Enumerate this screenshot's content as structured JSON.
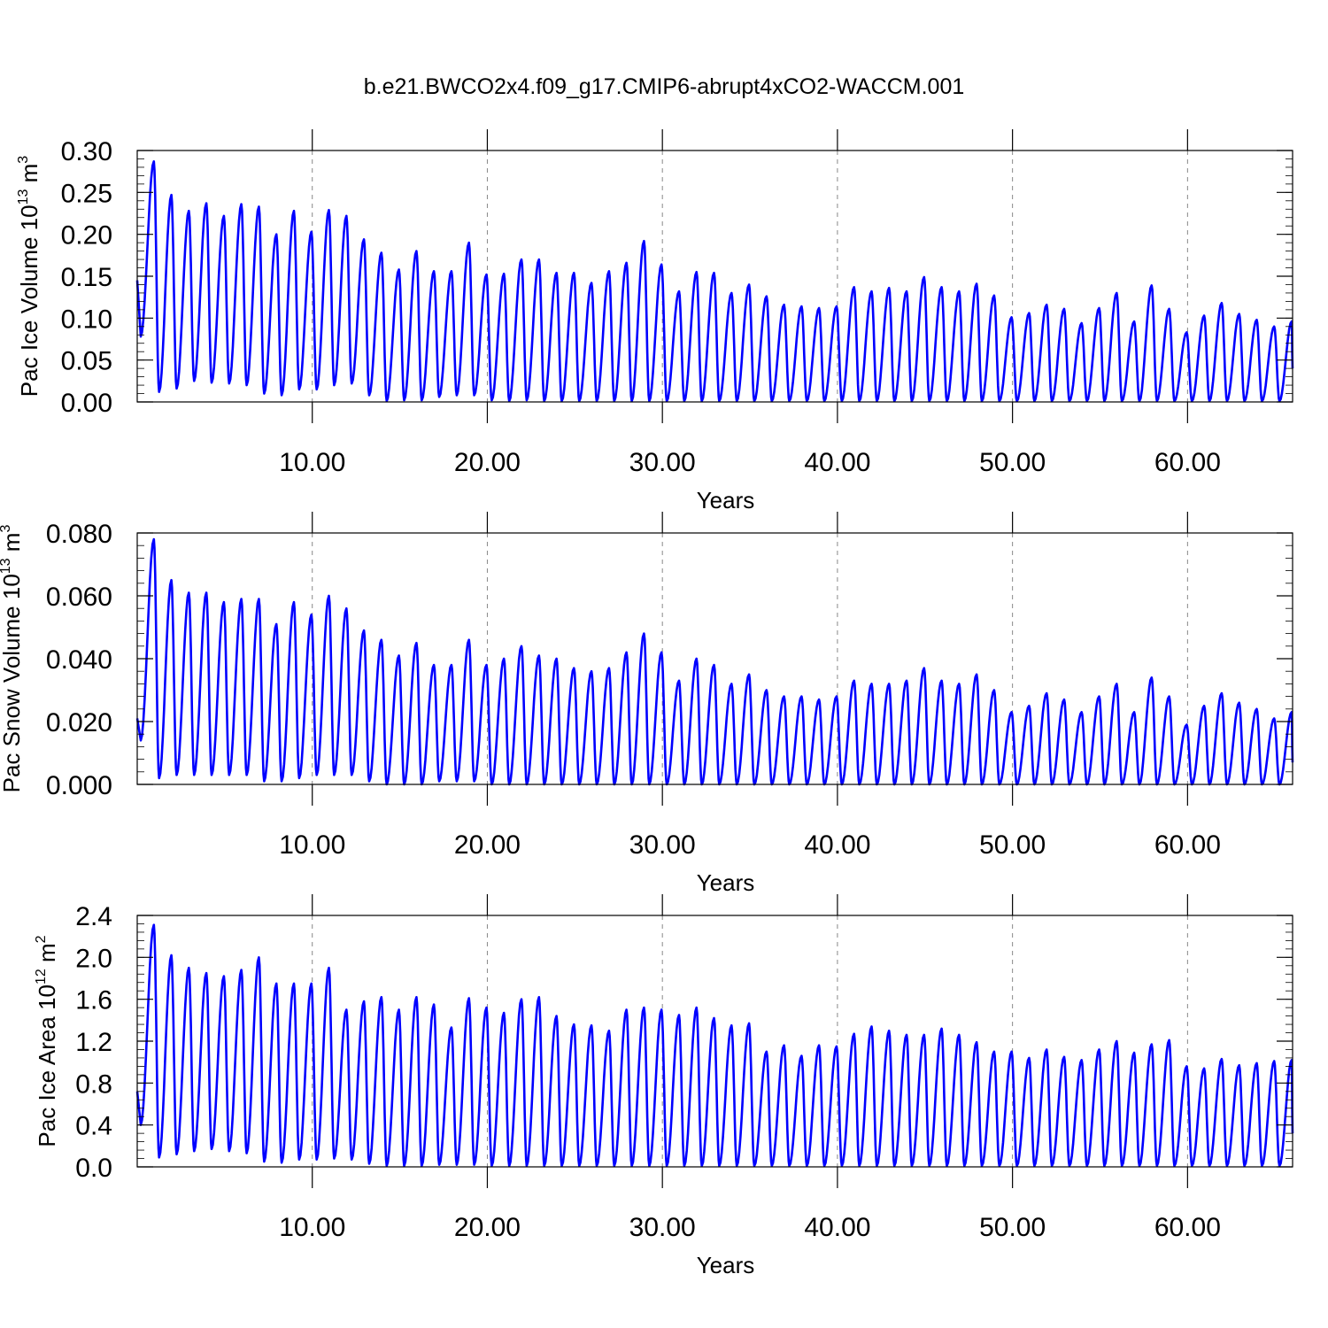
{
  "title": "b.e21.BWCO2x4.f09_g17.CMIP6-abrupt4xCO2-WACCM.001",
  "colors": {
    "line": "#0000ff",
    "axis": "#000000",
    "grid": "#888888"
  },
  "chart_data": [
    {
      "type": "line",
      "name": "ice-volume",
      "ylabel": "Pac Ice Volume",
      "yunit_base": "10",
      "yunit_exp": "13",
      "yunit_tail": "m",
      "yunit_tail_exp": "3",
      "xlabel": "Years",
      "xlim": [
        0,
        66
      ],
      "ylim": [
        0,
        0.3
      ],
      "xticks": [
        10,
        20,
        30,
        40,
        50,
        60
      ],
      "xtick_labels": [
        "10.00",
        "20.00",
        "30.00",
        "40.00",
        "50.00",
        "60.00"
      ],
      "yticks": [
        0,
        0.05,
        0.1,
        0.15,
        0.2,
        0.25,
        0.3
      ],
      "ytick_labels": [
        "0.00",
        "0.05",
        "0.10",
        "0.15",
        "0.20",
        "0.25",
        "0.30"
      ],
      "grid": "vertical dashed at x ticks",
      "start_value": 0.145,
      "end_value": 0.04,
      "annual_maxima": [
        0.287,
        0.247,
        0.228,
        0.237,
        0.222,
        0.236,
        0.233,
        0.2,
        0.228,
        0.203,
        0.229,
        0.222,
        0.194,
        0.178,
        0.158,
        0.18,
        0.156,
        0.156,
        0.19,
        0.152,
        0.153,
        0.17,
        0.17,
        0.154,
        0.154,
        0.142,
        0.156,
        0.166,
        0.192,
        0.164,
        0.132,
        0.155,
        0.154,
        0.13,
        0.14,
        0.126,
        0.116,
        0.114,
        0.112,
        0.114,
        0.137,
        0.132,
        0.136,
        0.132,
        0.149,
        0.137,
        0.132,
        0.141,
        0.127,
        0.101,
        0.106,
        0.116,
        0.111,
        0.094,
        0.112,
        0.13,
        0.096,
        0.139,
        0.111,
        0.083,
        0.103,
        0.118,
        0.105,
        0.098,
        0.09,
        0.096
      ],
      "annual_minima": [
        0.078,
        0.012,
        0.016,
        0.025,
        0.023,
        0.022,
        0.02,
        0.01,
        0.008,
        0.015,
        0.015,
        0.02,
        0.022,
        0.008,
        0.001,
        0.002,
        0.002,
        0.006,
        0.008,
        0.008,
        0.002,
        0.001,
        0.002,
        0.001,
        0.001,
        0.001,
        0.001,
        0.001,
        0.001,
        0.001,
        0.001,
        0.001,
        0.001,
        0.001,
        0.001,
        0.001,
        0.001,
        0.001,
        0.001,
        0.001,
        0.001,
        0.001,
        0.001,
        0.001,
        0.001,
        0.001,
        0.001,
        0.001,
        0.001,
        0.001,
        0.001,
        0.001,
        0.001,
        0.001,
        0.001,
        0.001,
        0.001,
        0.001,
        0.001,
        0.001,
        0.001,
        0.001,
        0.001,
        0.001,
        0.001,
        0.001
      ]
    },
    {
      "type": "line",
      "name": "snow-volume",
      "ylabel": "Pac Snow Volume",
      "yunit_base": "10",
      "yunit_exp": "13",
      "yunit_tail": "m",
      "yunit_tail_exp": "3",
      "xlabel": "Years",
      "xlim": [
        0,
        66
      ],
      "ylim": [
        0,
        0.08
      ],
      "xticks": [
        10,
        20,
        30,
        40,
        50,
        60
      ],
      "xtick_labels": [
        "10.00",
        "20.00",
        "30.00",
        "40.00",
        "50.00",
        "60.00"
      ],
      "yticks": [
        0,
        0.02,
        0.04,
        0.06,
        0.08
      ],
      "ytick_labels": [
        "0.000",
        "0.020",
        "0.040",
        "0.060",
        "0.080"
      ],
      "grid": "vertical dashed at x ticks",
      "start_value": 0.021,
      "end_value": 0.007,
      "annual_maxima": [
        0.078,
        0.065,
        0.061,
        0.061,
        0.058,
        0.059,
        0.059,
        0.051,
        0.058,
        0.054,
        0.06,
        0.056,
        0.049,
        0.046,
        0.041,
        0.045,
        0.038,
        0.038,
        0.046,
        0.038,
        0.04,
        0.044,
        0.041,
        0.04,
        0.037,
        0.036,
        0.037,
        0.042,
        0.048,
        0.042,
        0.033,
        0.04,
        0.038,
        0.032,
        0.035,
        0.03,
        0.028,
        0.028,
        0.027,
        0.028,
        0.033,
        0.032,
        0.032,
        0.033,
        0.037,
        0.033,
        0.032,
        0.035,
        0.03,
        0.023,
        0.025,
        0.029,
        0.027,
        0.023,
        0.028,
        0.032,
        0.023,
        0.034,
        0.028,
        0.019,
        0.025,
        0.029,
        0.026,
        0.024,
        0.021,
        0.023
      ],
      "annual_minima": [
        0.014,
        0.002,
        0.003,
        0.003,
        0.003,
        0.003,
        0.003,
        0.001,
        0.001,
        0.002,
        0.003,
        0.003,
        0.003,
        0.001,
        0.0,
        0.0,
        0.0,
        0.001,
        0.001,
        0.001,
        0.0,
        0.0,
        0.0,
        0.0,
        0.0,
        0.0,
        0.0,
        0.0,
        0.0,
        0.0,
        0.0,
        0.0,
        0.0,
        0.0,
        0.0,
        0.0,
        0.0,
        0.0,
        0.0,
        0.0,
        0.0,
        0.0,
        0.0,
        0.0,
        0.0,
        0.0,
        0.0,
        0.0,
        0.0,
        0.0,
        0.0,
        0.0,
        0.0,
        0.0,
        0.0,
        0.0,
        0.0,
        0.0,
        0.0,
        0.0,
        0.0,
        0.0,
        0.0,
        0.0,
        0.0,
        0.0
      ]
    },
    {
      "type": "line",
      "name": "ice-area",
      "ylabel": "Pac Ice Area",
      "yunit_base": "10",
      "yunit_exp": "12",
      "yunit_tail": "m",
      "yunit_tail_exp": "2",
      "xlabel": "Years",
      "xlim": [
        0,
        66
      ],
      "ylim": [
        0,
        2.4
      ],
      "xticks": [
        10,
        20,
        30,
        40,
        50,
        60
      ],
      "xtick_labels": [
        "10.00",
        "20.00",
        "30.00",
        "40.00",
        "50.00",
        "60.00"
      ],
      "yticks": [
        0,
        0.4,
        0.8,
        1.2,
        1.6,
        2.0,
        2.4
      ],
      "ytick_labels": [
        "0.0",
        "0.4",
        "0.8",
        "1.2",
        "1.6",
        "2.0",
        "2.4"
      ],
      "grid": "vertical dashed at x ticks",
      "start_value": 0.72,
      "end_value": 0.32,
      "annual_maxima": [
        2.31,
        2.02,
        1.9,
        1.85,
        1.82,
        1.88,
        2.0,
        1.75,
        1.75,
        1.75,
        1.9,
        1.5,
        1.58,
        1.62,
        1.5,
        1.62,
        1.55,
        1.33,
        1.61,
        1.52,
        1.47,
        1.6,
        1.62,
        1.44,
        1.36,
        1.35,
        1.3,
        1.5,
        1.52,
        1.5,
        1.45,
        1.52,
        1.42,
        1.35,
        1.37,
        1.1,
        1.16,
        1.06,
        1.16,
        1.15,
        1.27,
        1.34,
        1.3,
        1.26,
        1.26,
        1.32,
        1.26,
        1.19,
        1.1,
        1.1,
        1.04,
        1.12,
        1.05,
        1.02,
        1.12,
        1.2,
        1.09,
        1.17,
        1.21,
        0.96,
        0.94,
        1.03,
        0.97,
        0.99,
        1.01,
        1.02
      ],
      "annual_minima": [
        0.4,
        0.09,
        0.12,
        0.15,
        0.17,
        0.15,
        0.13,
        0.05,
        0.04,
        0.07,
        0.07,
        0.08,
        0.07,
        0.03,
        0.01,
        0.01,
        0.01,
        0.02,
        0.02,
        0.02,
        0.01,
        0.01,
        0.01,
        0.01,
        0.01,
        0.01,
        0.01,
        0.01,
        0.01,
        0.01,
        0.01,
        0.01,
        0.01,
        0.01,
        0.01,
        0.01,
        0.01,
        0.01,
        0.01,
        0.01,
        0.01,
        0.01,
        0.01,
        0.01,
        0.01,
        0.01,
        0.01,
        0.01,
        0.01,
        0.01,
        0.01,
        0.01,
        0.01,
        0.01,
        0.01,
        0.01,
        0.01,
        0.01,
        0.01,
        0.01,
        0.01,
        0.01,
        0.01,
        0.01,
        0.01,
        0.01
      ]
    }
  ]
}
